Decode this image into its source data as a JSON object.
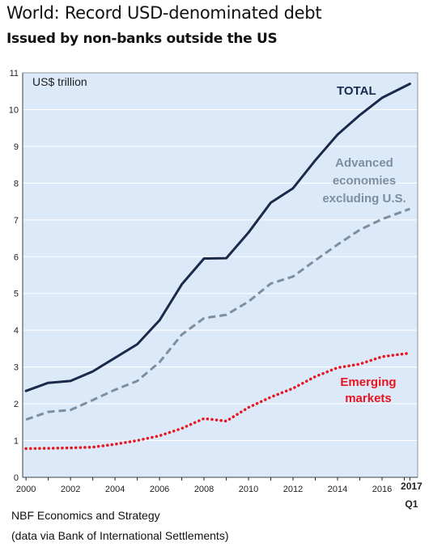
{
  "title": "World: Record USD-denominated debt",
  "subtitle": "Issued by non-banks outside the US",
  "footer": {
    "source_line1": "NBF Economics and Strategy",
    "source_line2": "(data via Bank of International Settlements)"
  },
  "chart_data": {
    "type": "line",
    "unit_label": "US$ trillion",
    "xlim": [
      1999.85,
      2017.6
    ],
    "ylim": [
      0,
      11
    ],
    "yticks": [
      0,
      1,
      2,
      3,
      4,
      5,
      6,
      7,
      8,
      9,
      10,
      11
    ],
    "xticks": [
      {
        "value": 2000,
        "label": "2000"
      },
      {
        "value": 2002,
        "label": "2002"
      },
      {
        "value": 2004,
        "label": "2004"
      },
      {
        "value": 2006,
        "label": "2006"
      },
      {
        "value": 2008,
        "label": "2008"
      },
      {
        "value": 2010,
        "label": "2010"
      },
      {
        "value": 2012,
        "label": "2012"
      },
      {
        "value": 2014,
        "label": "2014"
      },
      {
        "value": 2016,
        "label": "2016"
      }
    ],
    "last_tick": {
      "value": 2017.25,
      "label_top": "2017",
      "label_bottom": "Q1"
    },
    "colors": {
      "background": "#dce9f8",
      "grid": "#ffffff",
      "total": "#1a2a4a",
      "advanced": "#7b8fa3",
      "emerging": "#e8141e"
    },
    "series": [
      {
        "key": "total",
        "name": "TOTAL",
        "style": "solid",
        "x": [
          2000,
          2001,
          2002,
          2003,
          2004,
          2005,
          2006,
          2007,
          2008,
          2009,
          2010,
          2011,
          2012,
          2013,
          2014,
          2015,
          2016,
          2017.25
        ],
        "y": [
          2.35,
          2.57,
          2.62,
          2.88,
          3.25,
          3.62,
          4.27,
          5.25,
          5.95,
          5.96,
          6.66,
          7.47,
          7.86,
          8.62,
          9.32,
          9.85,
          10.32,
          10.7
        ]
      },
      {
        "key": "advanced",
        "name": "Advanced economies excluding U.S.",
        "name_lines": [
          "Advanced",
          "economies",
          "excluding U.S."
        ],
        "style": "dashed",
        "x": [
          2000,
          2001,
          2002,
          2003,
          2004,
          2005,
          2006,
          2007,
          2008,
          2009,
          2010,
          2011,
          2012,
          2013,
          2014,
          2015,
          2016,
          2017.25
        ],
        "y": [
          1.57,
          1.78,
          1.83,
          2.1,
          2.38,
          2.62,
          3.13,
          3.88,
          4.33,
          4.42,
          4.78,
          5.27,
          5.46,
          5.9,
          6.33,
          6.73,
          7.02,
          7.3
        ]
      },
      {
        "key": "emerging",
        "name": "Emerging markets",
        "name_lines": [
          "Emerging",
          "markets"
        ],
        "style": "dotted",
        "x": [
          2000,
          2001,
          2002,
          2003,
          2004,
          2005,
          2006,
          2007,
          2008,
          2009,
          2010,
          2011,
          2012,
          2013,
          2014,
          2015,
          2016,
          2017.25
        ],
        "y": [
          0.78,
          0.79,
          0.8,
          0.82,
          0.9,
          1.0,
          1.13,
          1.33,
          1.6,
          1.53,
          1.9,
          2.18,
          2.42,
          2.74,
          2.98,
          3.08,
          3.28,
          3.38
        ]
      }
    ]
  }
}
